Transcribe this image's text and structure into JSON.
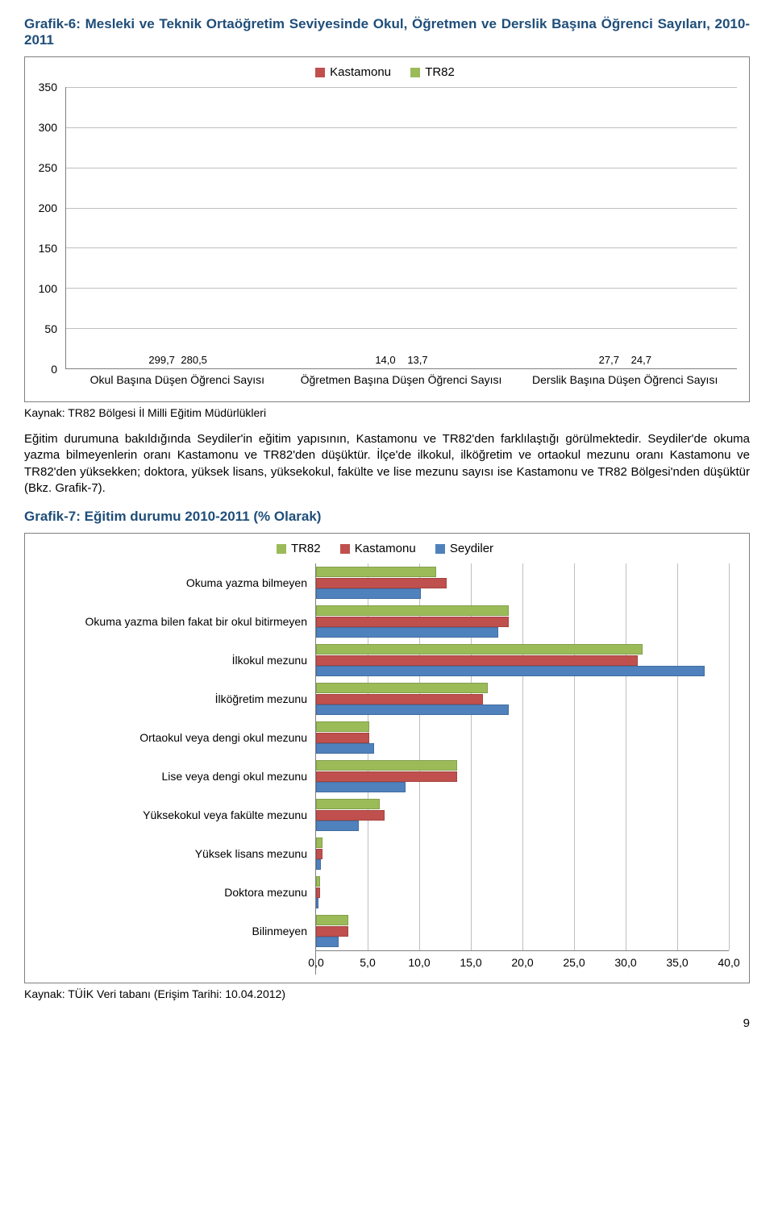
{
  "chart1_title": "Grafik-6: Mesleki ve Teknik Ortaöğretim Seviyesinde Okul, Öğretmen ve Derslik Başına Öğrenci Sayıları, 2010-2011",
  "chart1": {
    "type": "bar",
    "legend": [
      {
        "label": "Kastamonu",
        "color": "#c0504d"
      },
      {
        "label": "TR82",
        "color": "#9bbb59"
      }
    ],
    "ylim": [
      0,
      350
    ],
    "ytick_step": 50,
    "grid_color": "#bfbfbf",
    "background_color": "#ffffff",
    "categories": [
      {
        "label": "Okul Başına Düşen Öğrenci Sayısı",
        "values": [
          299.7,
          280.5
        ],
        "value_labels": [
          "299,7",
          "280,5"
        ]
      },
      {
        "label": "Öğretmen Başına Düşen Öğrenci Sayısı",
        "values": [
          14.0,
          13.7
        ],
        "value_labels": [
          "14,0",
          "13,7"
        ]
      },
      {
        "label": "Derslik Başına Düşen Öğrenci Sayısı",
        "values": [
          27.7,
          24.7
        ],
        "value_labels": [
          "27,7",
          "24,7"
        ]
      }
    ],
    "bar_colors": [
      "#c0504d",
      "#9bbb59"
    ],
    "label_fontsize": 14
  },
  "chart1_source": "Kaynak: TR82 Bölgesi İl Milli Eğitim Müdürlükleri",
  "paragraph": "Eğitim durumuna bakıldığında Seydiler'in eğitim yapısının, Kastamonu ve TR82'den farklılaştığı görülmektedir. Seydiler'de okuma yazma bilmeyenlerin oranı Kastamonu ve TR82'den düşüktür. İlçe'de ilkokul, ilköğretim ve ortaokul mezunu oranı Kastamonu ve TR82'den yüksekken; doktora, yüksek lisans, yüksekokul, fakülte ve lise mezunu sayısı ise Kastamonu ve TR82 Bölgesi'nden düşüktür (Bkz. Grafik-7).",
  "chart2_title": "Grafik-7: Eğitim durumu 2010-2011 (% Olarak)",
  "chart2": {
    "type": "hbar",
    "legend": [
      {
        "label": "TR82",
        "color": "#9bbb59"
      },
      {
        "label": "Kastamonu",
        "color": "#c0504d"
      },
      {
        "label": "Seydiler",
        "color": "#4f81bd"
      }
    ],
    "xlim": [
      0,
      40
    ],
    "xtick_step": 5,
    "xtick_labels": [
      "0,0",
      "5,0",
      "10,0",
      "15,0",
      "20,0",
      "25,0",
      "30,0",
      "35,0",
      "40,0"
    ],
    "grid_color": "#bfbfbf",
    "bar_colors": [
      "#9bbb59",
      "#c0504d",
      "#4f81bd"
    ],
    "categories": [
      {
        "label": "Okuma yazma bilmeyen",
        "values": [
          11.5,
          12.5,
          10.0
        ]
      },
      {
        "label": "Okuma yazma bilen fakat bir okul bitirmeyen",
        "values": [
          18.5,
          18.5,
          17.5
        ]
      },
      {
        "label": "İlkokul mezunu",
        "values": [
          31.5,
          31.0,
          37.5
        ]
      },
      {
        "label": "İlköğretim mezunu",
        "values": [
          16.5,
          16.0,
          18.5
        ]
      },
      {
        "label": "Ortaokul veya dengi okul mezunu",
        "values": [
          5.0,
          5.0,
          5.5
        ]
      },
      {
        "label": "Lise veya dengi okul mezunu",
        "values": [
          13.5,
          13.5,
          8.5
        ]
      },
      {
        "label": "Yüksekokul veya fakülte mezunu",
        "values": [
          6.0,
          6.5,
          4.0
        ]
      },
      {
        "label": "Yüksek lisans mezunu",
        "values": [
          0.5,
          0.5,
          0.3
        ]
      },
      {
        "label": "Doktora mezunu",
        "values": [
          0.2,
          0.2,
          0.1
        ]
      },
      {
        "label": "Bilinmeyen",
        "values": [
          3.0,
          3.0,
          2.0
        ]
      }
    ]
  },
  "chart2_source": "Kaynak: TÜİK Veri tabanı (Erişim Tarihi: 10.04.2012)",
  "page_number": "9"
}
